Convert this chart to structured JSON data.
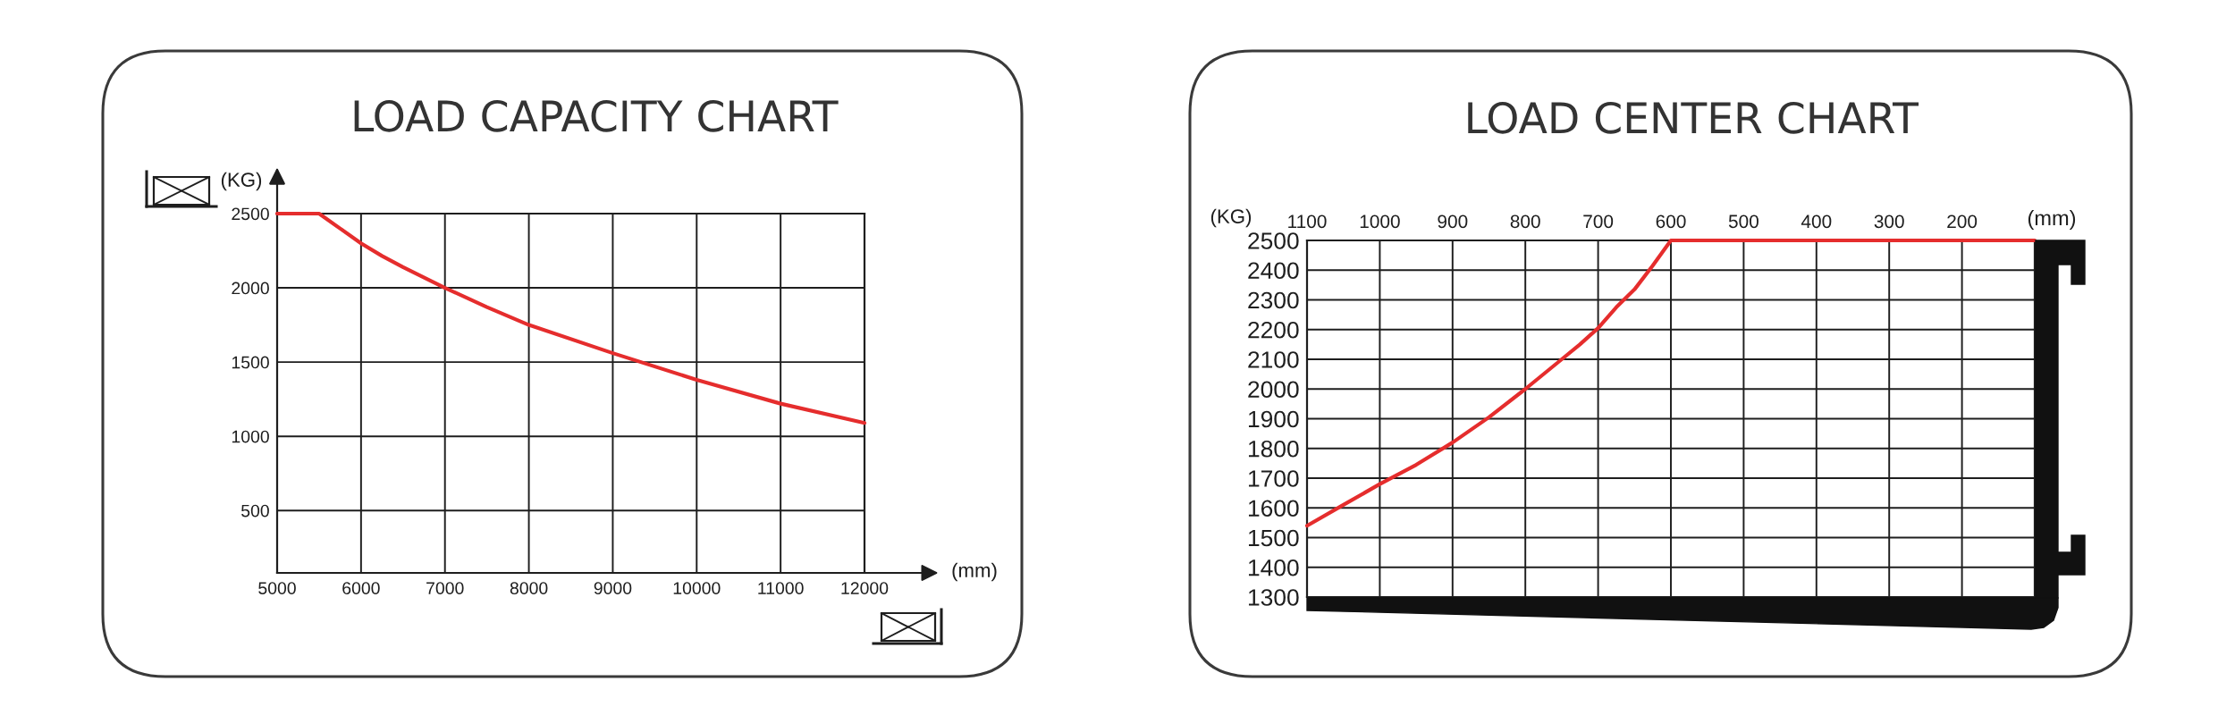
{
  "chart_data": [
    {
      "type": "line",
      "title": "LOAD CAPACITY CHART",
      "xlabel": "(mm)",
      "ylabel": "(KG)",
      "x": [
        5000,
        5500,
        5750,
        6000,
        6250,
        6500,
        7000,
        7500,
        8000,
        9000,
        10000,
        11000,
        12000
      ],
      "series": [
        {
          "color": "#e52d2d",
          "values": [
            2500,
            2500,
            2400,
            2300,
            2215,
            2140,
            2000,
            1870,
            1750,
            1560,
            1380,
            1220,
            1090
          ]
        }
      ],
      "xlim": [
        5000,
        12000
      ],
      "ylim": [
        80,
        2500
      ],
      "xticks": [
        5000,
        6000,
        7000,
        8000,
        9000,
        10000,
        11000,
        12000
      ],
      "yticks": [
        500,
        1000,
        1500,
        2000,
        2500
      ],
      "grid": true
    },
    {
      "type": "line",
      "title": "LOAD CENTER CHART",
      "xlabel": "(mm)",
      "ylabel": "(KG)",
      "x": [
        1100,
        1050,
        1000,
        950,
        900,
        850,
        800,
        750,
        725,
        700,
        675,
        650,
        625,
        600,
        100
      ],
      "series": [
        {
          "color": "#e52d2d",
          "values": [
            1540,
            1610,
            1680,
            1745,
            1820,
            1905,
            2000,
            2100,
            2150,
            2205,
            2275,
            2335,
            2415,
            2500,
            2500
          ]
        }
      ],
      "xlim": [
        1100,
        100
      ],
      "ylim": [
        1300,
        2500
      ],
      "xticks": [
        1100,
        1000,
        900,
        800,
        700,
        600,
        500,
        400,
        300,
        200
      ],
      "yticks": [
        1300,
        1400,
        1500,
        1600,
        1700,
        1800,
        1900,
        2000,
        2100,
        2200,
        2300,
        2400,
        2500
      ],
      "grid": true
    }
  ]
}
